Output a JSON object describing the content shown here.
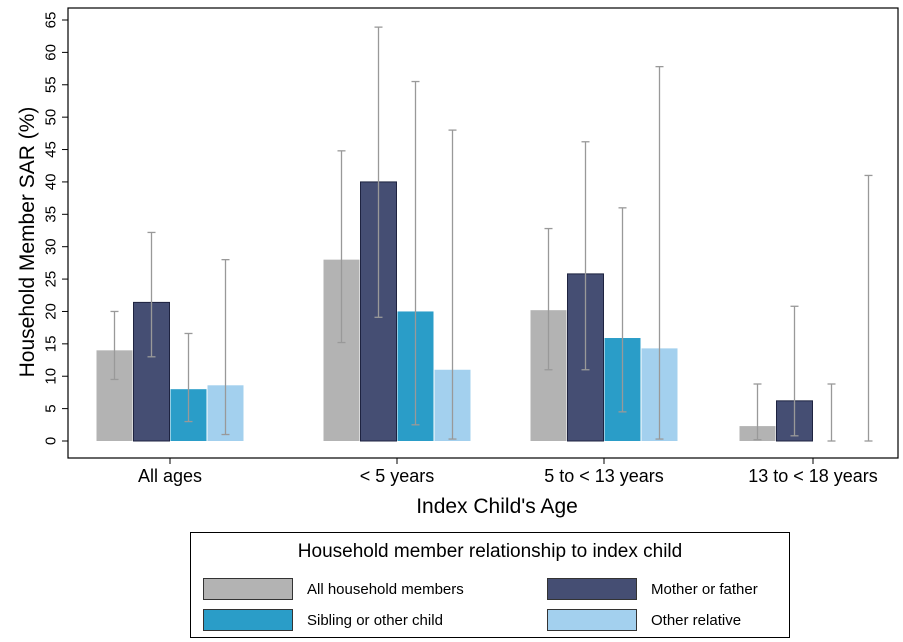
{
  "chart_data": {
    "type": "bar",
    "xlabel": "Index Child's Age",
    "ylabel": "Household Member SAR (%)",
    "ylim": [
      0,
      65
    ],
    "yticks": [
      0,
      5,
      10,
      15,
      20,
      25,
      30,
      35,
      40,
      45,
      50,
      55,
      60,
      65
    ],
    "categories": [
      "All ages",
      "< 5 years",
      "5 to < 13 years",
      "13 to < 18 years"
    ],
    "series": [
      {
        "name": "All household members",
        "color": "#b3b3b3",
        "values": [
          14.0,
          28.0,
          20.2,
          2.3
        ],
        "err_low": [
          9.5,
          15.2,
          11.0,
          0.2
        ],
        "err_high": [
          20.0,
          44.8,
          32.8,
          8.8
        ]
      },
      {
        "name": "Mother or father",
        "color": "#454e73",
        "values": [
          21.4,
          40.0,
          25.8,
          6.2
        ],
        "err_low": [
          13.0,
          19.1,
          11.0,
          0.8
        ],
        "err_high": [
          32.2,
          63.9,
          46.2,
          20.8
        ]
      },
      {
        "name": "Sibling or other child",
        "color": "#2a9dc8",
        "values": [
          8.0,
          20.0,
          15.9,
          0.0
        ],
        "err_low": [
          3.0,
          2.5,
          4.5,
          0.0
        ],
        "err_high": [
          16.6,
          55.5,
          36.0,
          8.8
        ]
      },
      {
        "name": "Other relative",
        "color": "#a3d0ee",
        "values": [
          8.6,
          11.0,
          14.3,
          0.0
        ],
        "err_low": [
          1.0,
          0.3,
          0.3,
          0.0
        ],
        "err_high": [
          28.0,
          48.0,
          57.8,
          41.0
        ]
      }
    ],
    "legend": {
      "title": "Household member relationship to index child",
      "placement": "bottom"
    },
    "grid": false
  }
}
